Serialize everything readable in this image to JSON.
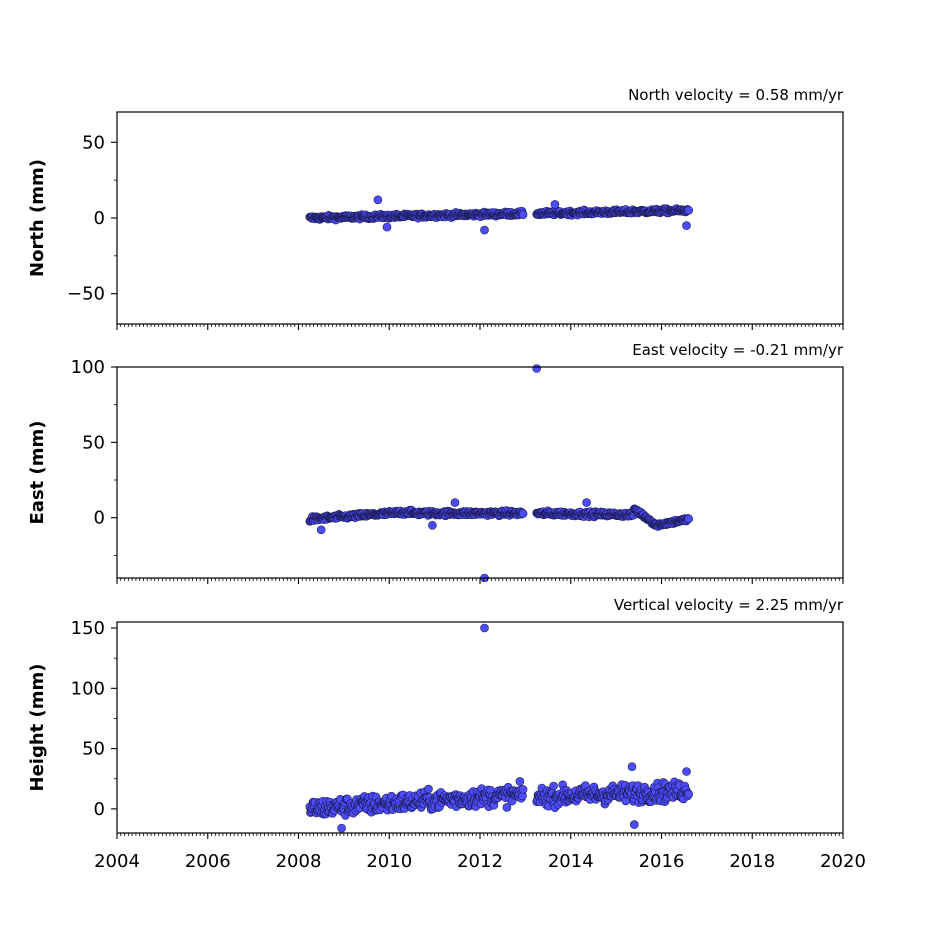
{
  "chart_data": [
    {
      "type": "scatter",
      "title": "North velocity = 0.58 mm/yr",
      "xlabel": "",
      "ylabel": "North (mm)",
      "xlim": [
        2004,
        2020
      ],
      "ylim": [
        -70,
        70
      ],
      "yticks": [
        50,
        0,
        -50
      ],
      "ytick_labels": [
        "50",
        "0",
        "−50"
      ],
      "x_tick_labels_shown": false,
      "marker_color": "#4d4dff",
      "marker_edge": "#1a1a4d",
      "series": [
        {
          "segments": [
            {
              "x_start": 2008.25,
              "x_end": 2012.95,
              "y_start": 0.0,
              "y_end": 3.0,
              "spread": 1.6
            },
            {
              "x_start": 2013.25,
              "x_end": 2016.6,
              "y_start": 3.0,
              "y_end": 5.0,
              "spread": 1.6
            }
          ],
          "outliers": [
            {
              "x": 2009.75,
              "y": 12
            },
            {
              "x": 2012.1,
              "y": -8
            },
            {
              "x": 2009.95,
              "y": -6
            },
            {
              "x": 2016.55,
              "y": -5
            },
            {
              "x": 2013.65,
              "y": 9
            }
          ]
        }
      ]
    },
    {
      "type": "scatter",
      "title": "East velocity = -0.21 mm/yr",
      "xlabel": "",
      "ylabel": "East (mm)",
      "xlim": [
        2004,
        2020
      ],
      "ylim": [
        -40,
        100
      ],
      "yticks": [
        100,
        50,
        0
      ],
      "ytick_labels": [
        "100",
        "50",
        "0"
      ],
      "x_tick_labels_shown": false,
      "marker_color": "#4d4dff",
      "marker_edge": "#1a1a4d",
      "series": [
        {
          "segments": [
            {
              "x_start": 2008.25,
              "x_end": 2010.5,
              "y_start": -1.0,
              "y_end": 4.0,
              "spread": 1.8
            },
            {
              "x_start": 2010.5,
              "x_end": 2012.95,
              "y_start": 3.0,
              "y_end": 3.0,
              "spread": 1.8
            },
            {
              "x_start": 2013.25,
              "x_end": 2015.4,
              "y_start": 3.0,
              "y_end": 2.0,
              "spread": 1.8
            },
            {
              "x_start": 2015.4,
              "x_end": 2015.85,
              "y_start": 6.0,
              "y_end": -4.0,
              "spread": 1.5
            },
            {
              "x_start": 2015.85,
              "x_end": 2016.6,
              "y_start": -5.0,
              "y_end": -1.0,
              "spread": 1.5
            }
          ],
          "outliers": [
            {
              "x": 2013.25,
              "y": 99
            },
            {
              "x": 2012.1,
              "y": -40
            },
            {
              "x": 2008.5,
              "y": -8
            },
            {
              "x": 2010.95,
              "y": -5
            },
            {
              "x": 2011.45,
              "y": 10
            },
            {
              "x": 2014.35,
              "y": 10
            }
          ]
        }
      ]
    },
    {
      "type": "scatter",
      "title": "Vertical velocity = 2.25 mm/yr",
      "xlabel": "",
      "ylabel": "Height (mm)",
      "xlim": [
        2004,
        2020
      ],
      "ylim": [
        -20,
        155
      ],
      "yticks": [
        150,
        100,
        50,
        0
      ],
      "ytick_labels": [
        "150",
        "100",
        "50",
        "0"
      ],
      "xticks": [
        2004,
        2006,
        2008,
        2010,
        2012,
        2014,
        2016,
        2018,
        2020
      ],
      "xtick_labels": [
        "2004",
        "2006",
        "2008",
        "2010",
        "2012",
        "2014",
        "2016",
        "2018",
        "2020"
      ],
      "x_tick_labels_shown": true,
      "marker_color": "#4d4dff",
      "marker_edge": "#1a1a4d",
      "series": [
        {
          "segments": [
            {
              "x_start": 2008.25,
              "x_end": 2012.95,
              "y_start": 0.0,
              "y_end": 12.0,
              "spread": 9
            },
            {
              "x_start": 2013.25,
              "x_end": 2016.6,
              "y_start": 10.0,
              "y_end": 15.0,
              "spread": 9
            }
          ],
          "outliers": [
            {
              "x": 2012.1,
              "y": 150
            },
            {
              "x": 2015.35,
              "y": 35
            },
            {
              "x": 2015.4,
              "y": -13
            },
            {
              "x": 2016.55,
              "y": 31
            },
            {
              "x": 2008.95,
              "y": -16
            }
          ]
        }
      ]
    }
  ]
}
